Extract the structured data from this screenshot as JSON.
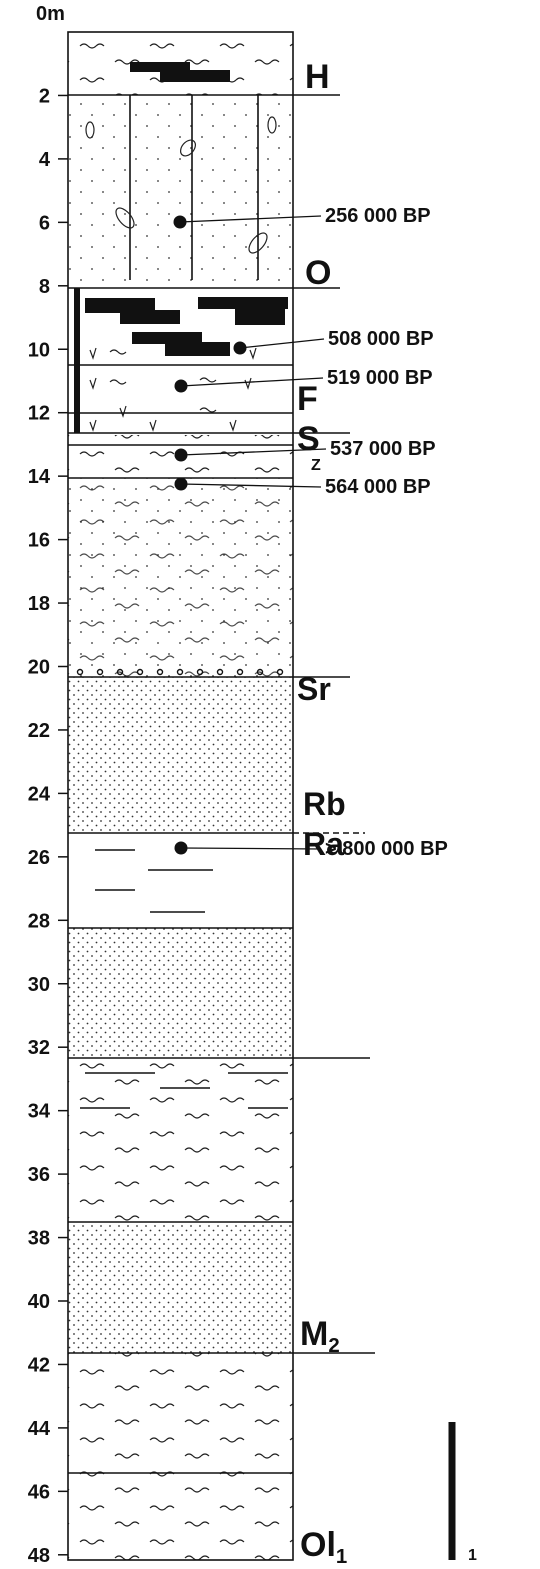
{
  "depth_labels": [
    "0m",
    "2",
    "4",
    "6",
    "8",
    "10",
    "12",
    "14",
    "16",
    "18",
    "20",
    "22",
    "24",
    "26",
    "28",
    "30",
    "32",
    "34",
    "36",
    "38",
    "40",
    "42",
    "44",
    "46",
    "48"
  ],
  "units": [
    {
      "label": "H"
    },
    {
      "label": "O"
    },
    {
      "label": "F"
    },
    {
      "label": "S"
    },
    {
      "label": "Z"
    },
    {
      "label": "Sr"
    },
    {
      "label": "Rb"
    },
    {
      "label": "Ra"
    },
    {
      "label": "M",
      "sub": "2"
    },
    {
      "label": "Ol",
      "sub": "1"
    }
  ],
  "dates": [
    "256 000 BP",
    "508 000 BP",
    "519 000 BP",
    "537 000 BP",
    "564 000 BP",
    "> 800 000 BP"
  ],
  "scale_label": "1"
}
